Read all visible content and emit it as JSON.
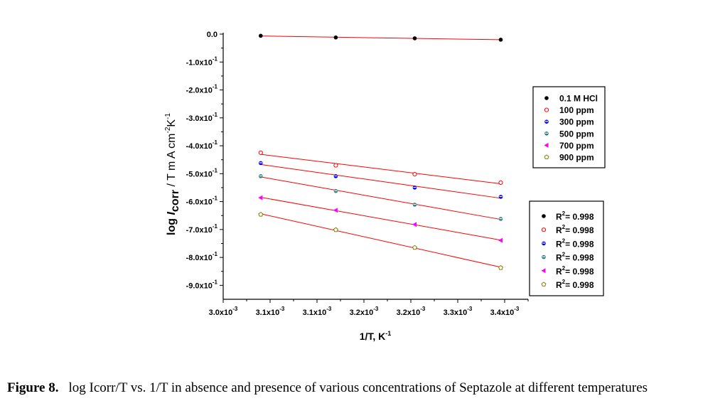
{
  "chart_data": {
    "type": "scatter",
    "title": "",
    "xlabel": "1/T, K",
    "xlabel_sup": "-1",
    "ylabel_pre": "log ",
    "ylabel_i": "I",
    "ylabel_sub": "corr",
    "ylabel_post": " / T m A cm",
    "ylabel_sup1": "-2",
    "ylabel_k": "K",
    "ylabel_sup2": "-1",
    "xlim": [
      0.003,
      0.00339
    ],
    "ylim": [
      -0.95,
      0.0
    ],
    "xticks": [
      {
        "value": 0.003,
        "label": "3.0x10",
        "exp": "-3"
      },
      {
        "value": 0.00306,
        "label": "3.1x10",
        "exp": "-3"
      },
      {
        "value": 0.00312,
        "label": "3.1x10",
        "exp": "-3"
      },
      {
        "value": 0.00318,
        "label": "3.2x10",
        "exp": "-3"
      },
      {
        "value": 0.00324,
        "label": "3.2x10",
        "exp": "-3"
      },
      {
        "value": 0.0033,
        "label": "3.3x10",
        "exp": "-3"
      },
      {
        "value": 0.00336,
        "label": "3.4x10",
        "exp": "-3"
      }
    ],
    "yticks": [
      {
        "value": 0.0,
        "label": "0.0",
        "exp": ""
      },
      {
        "value": -0.1,
        "label": "-1.0x10",
        "exp": "-1"
      },
      {
        "value": -0.2,
        "label": "-2.0x10",
        "exp": "-1"
      },
      {
        "value": -0.3,
        "label": "-3.0x10",
        "exp": "-1"
      },
      {
        "value": -0.4,
        "label": "-4.0x10",
        "exp": "-1"
      },
      {
        "value": -0.5,
        "label": "-5.0x10",
        "exp": "-1"
      },
      {
        "value": -0.6,
        "label": "-6.0x10",
        "exp": "-1"
      },
      {
        "value": -0.7,
        "label": "-7.0x10",
        "exp": "-1"
      },
      {
        "value": -0.8,
        "label": "-8.0x10",
        "exp": "-1"
      },
      {
        "value": -0.9,
        "label": "-9.0x10",
        "exp": "-1"
      }
    ],
    "grid": false,
    "fit_line_color": "#ff0000",
    "x": [
      0.003048,
      0.003144,
      0.003245,
      0.003355
    ],
    "series": [
      {
        "name": "0.1 M HCl",
        "marker": "filled-circle",
        "color": "#000000",
        "values": [
          -0.006,
          -0.012,
          -0.015,
          -0.02
        ],
        "r2": "R",
        "r2_sup": "2",
        "r2_text": "= 0.998"
      },
      {
        "name": "100 ppm",
        "marker": "open-circle",
        "color": "#ff0000",
        "values": [
          -0.425,
          -0.47,
          -0.502,
          -0.532
        ],
        "r2": "R",
        "r2_sup": "2",
        "r2_text": "= 0.998"
      },
      {
        "name": "300 ppm",
        "marker": "half-circle",
        "color": "#0000ff",
        "values": [
          -0.462,
          -0.509,
          -0.55,
          -0.583
        ],
        "r2": "R",
        "r2_sup": "2",
        "r2_text": "= 0.998"
      },
      {
        "name": "500 ppm",
        "marker": "half-circle",
        "color": "#2f8080",
        "values": [
          -0.509,
          -0.562,
          -0.611,
          -0.662
        ],
        "r2": "R",
        "r2_sup": "2",
        "r2_text": "= 0.998"
      },
      {
        "name": "700 ppm",
        "marker": "left-triangle",
        "color": "#ff00ff",
        "values": [
          -0.586,
          -0.631,
          -0.682,
          -0.739
        ],
        "r2": "R",
        "r2_sup": "2",
        "r2_text": "= 0.998"
      },
      {
        "name": "900 ppm",
        "marker": "open-pentagon",
        "color": "#808000",
        "values": [
          -0.646,
          -0.701,
          -0.765,
          -0.837
        ],
        "r2": "R",
        "r2_sup": "2",
        "r2_text": "= 0.998"
      }
    ],
    "legend_placement": "right"
  },
  "caption": {
    "label": "Figure 8.",
    "text": "log Icorr/T vs. 1/T in absence and presence of various concentrations of Septazole at different temperatures"
  }
}
